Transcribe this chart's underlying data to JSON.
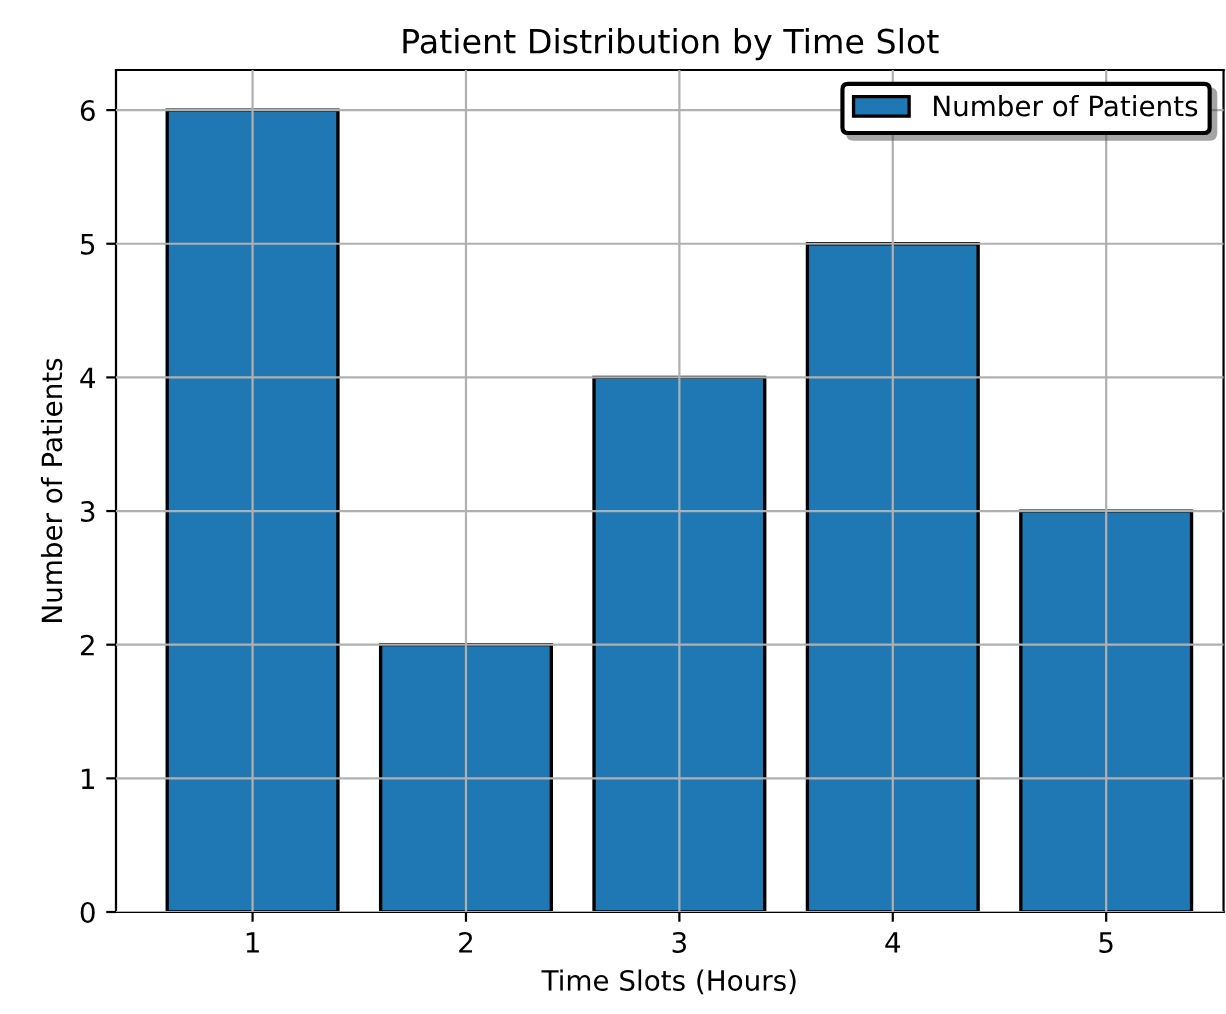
{
  "chart_data": {
    "type": "bar",
    "title": "Patient Distribution by Time Slot",
    "xlabel": "Time Slots (Hours)",
    "ylabel": "Number of Patients",
    "categories": [
      "1",
      "2",
      "3",
      "4",
      "5"
    ],
    "series": [
      {
        "name": "Number of Patients",
        "color": "#1f77b4",
        "values": [
          6,
          2,
          4,
          5,
          3
        ]
      }
    ],
    "ylim": [
      0,
      6.3
    ],
    "yticks": [
      0,
      1,
      2,
      3,
      4,
      5,
      6
    ],
    "grid": true,
    "legend": "top right"
  }
}
